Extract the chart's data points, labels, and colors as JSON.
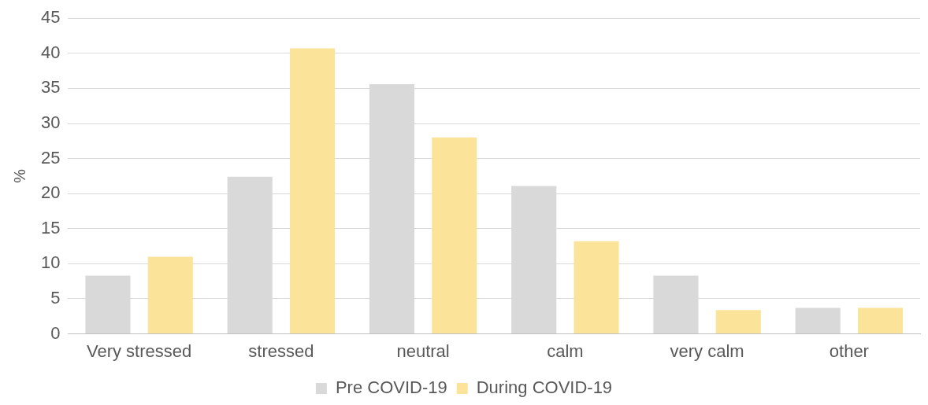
{
  "chart_data": {
    "type": "bar",
    "ylabel": "%",
    "categories": [
      "Very stressed",
      "stressed",
      "neutral",
      "calm",
      "very calm",
      "other"
    ],
    "series": [
      {
        "name": "Pre COVID-19",
        "color": "#d9d9d9",
        "values": [
          8.3,
          22.4,
          35.6,
          21.1,
          8.3,
          3.7
        ]
      },
      {
        "name": "During COVID-19",
        "color": "#fbe49a",
        "values": [
          11.0,
          40.7,
          28.0,
          13.2,
          3.4,
          3.7
        ]
      }
    ],
    "ylim": [
      0,
      45
    ],
    "yticks": [
      0,
      5,
      10,
      15,
      20,
      25,
      30,
      35,
      40,
      45
    ],
    "grid": "y",
    "legend": "bottom"
  }
}
